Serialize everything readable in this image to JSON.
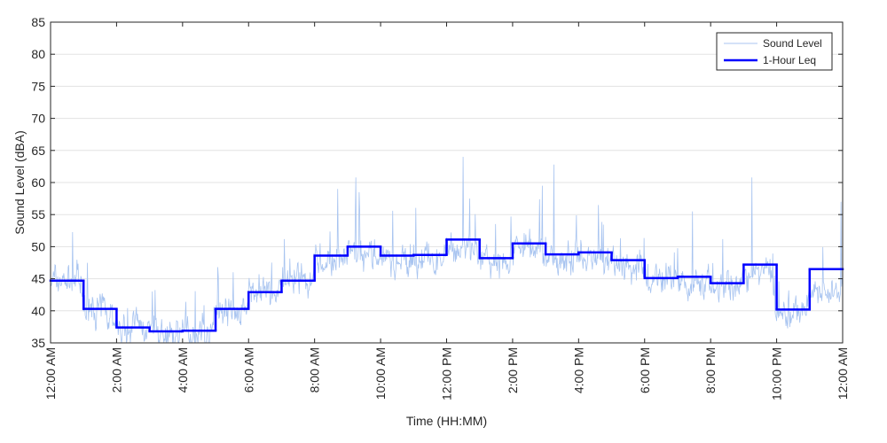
{
  "chart_data": {
    "type": "line",
    "title": "",
    "xlabel": "Time (HH:MM)",
    "ylabel": "Sound Level (dBA)",
    "xlim": [
      0,
      24
    ],
    "ylim": [
      35,
      85
    ],
    "y_ticks": [
      35,
      40,
      45,
      50,
      55,
      60,
      65,
      70,
      75,
      80,
      85
    ],
    "x_ticks": [
      {
        "hour": 0,
        "label": "12:00 AM"
      },
      {
        "hour": 2,
        "label": "2:00 AM"
      },
      {
        "hour": 4,
        "label": "4:00 AM"
      },
      {
        "hour": 6,
        "label": "6:00 AM"
      },
      {
        "hour": 8,
        "label": "8:00 AM"
      },
      {
        "hour": 10,
        "label": "10:00 AM"
      },
      {
        "hour": 12,
        "label": "12:00 PM"
      },
      {
        "hour": 14,
        "label": "2:00 PM"
      },
      {
        "hour": 16,
        "label": "4:00 PM"
      },
      {
        "hour": 18,
        "label": "6:00 PM"
      },
      {
        "hour": 20,
        "label": "8:00 PM"
      },
      {
        "hour": 22,
        "label": "10:00 PM"
      },
      {
        "hour": 24,
        "label": "12:00 AM"
      }
    ],
    "grid": "horizontal",
    "legend_position": "top-right",
    "series": [
      {
        "name": "Sound Level",
        "style": "thin-line",
        "color": "#a8c4f0",
        "hourly_mean": [
          44.8,
          40.2,
          37.3,
          36.5,
          36.2,
          39.5,
          42.5,
          44.5,
          47.8,
          48.8,
          47.8,
          48.0,
          49.5,
          47.8,
          49.8,
          48.2,
          48.3,
          47.0,
          44.5,
          44.3,
          44.0,
          46.0,
          39.8,
          43.0
        ],
        "spikes": [
          {
            "hour": 8.7,
            "value": 59.0
          },
          {
            "hour": 9.25,
            "value": 60.8
          },
          {
            "hour": 9.35,
            "value": 58.5
          },
          {
            "hour": 12.5,
            "value": 64.0
          },
          {
            "hour": 12.7,
            "value": 57.5
          },
          {
            "hour": 14.9,
            "value": 59.5
          },
          {
            "hour": 15.25,
            "value": 62.8
          },
          {
            "hour": 16.6,
            "value": 56.5
          },
          {
            "hour": 19.45,
            "value": 55.5
          },
          {
            "hour": 21.25,
            "value": 60.8
          },
          {
            "hour": 23.95,
            "value": 57.0
          }
        ]
      },
      {
        "name": "1-Hour Leq",
        "style": "step",
        "color": "#0000ff",
        "values": [
          44.7,
          40.3,
          37.4,
          36.8,
          36.9,
          40.3,
          42.9,
          44.7,
          48.6,
          50.0,
          48.6,
          48.7,
          51.1,
          48.2,
          50.5,
          48.8,
          49.1,
          47.9,
          45.1,
          45.3,
          44.3,
          47.2,
          40.2,
          46.5
        ]
      }
    ]
  }
}
